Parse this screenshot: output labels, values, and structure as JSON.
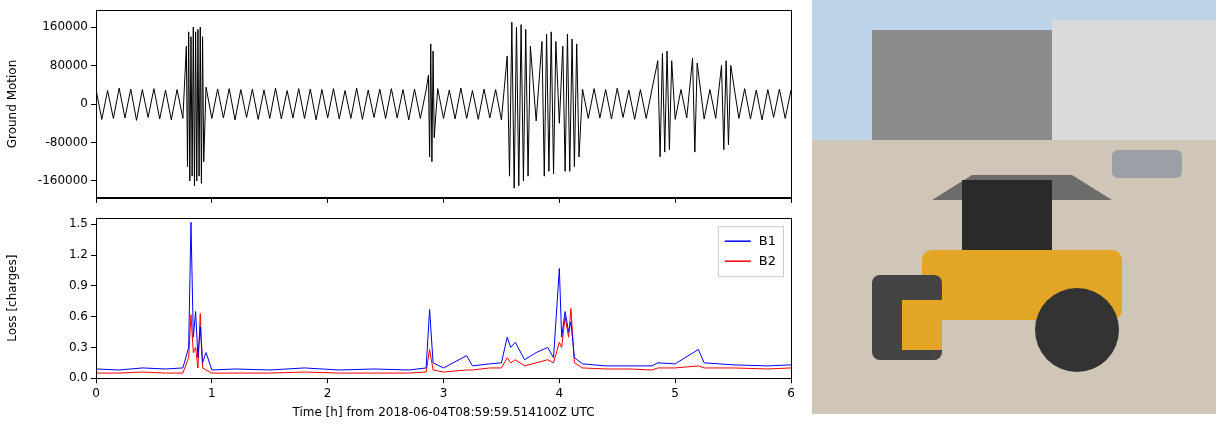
{
  "chart_data": [
    {
      "type": "line",
      "ylabel": "Ground Motion",
      "color": "#000000",
      "xlim": [
        0,
        6
      ],
      "xticks": [
        0,
        1,
        2,
        3,
        4,
        5,
        6
      ],
      "ylim": [
        -195000,
        195000
      ],
      "yticks": [
        -160000,
        -80000,
        0,
        80000,
        160000
      ],
      "grid": false,
      "tick_labels": "y",
      "x": [
        0,
        0.05,
        0.1,
        0.15,
        0.2,
        0.25,
        0.3,
        0.35,
        0.4,
        0.45,
        0.5,
        0.55,
        0.6,
        0.65,
        0.7,
        0.75,
        0.78,
        0.79,
        0.8,
        0.81,
        0.82,
        0.83,
        0.84,
        0.85,
        0.86,
        0.87,
        0.88,
        0.89,
        0.9,
        0.91,
        0.92,
        0.93,
        0.95,
        1.0,
        1.05,
        1.1,
        1.15,
        1.2,
        1.25,
        1.3,
        1.35,
        1.4,
        1.45,
        1.5,
        1.55,
        1.6,
        1.65,
        1.7,
        1.75,
        1.8,
        1.85,
        1.9,
        1.95,
        2.0,
        2.05,
        2.1,
        2.15,
        2.2,
        2.25,
        2.3,
        2.35,
        2.4,
        2.45,
        2.5,
        2.55,
        2.6,
        2.65,
        2.7,
        2.75,
        2.8,
        2.85,
        2.87,
        2.88,
        2.89,
        2.9,
        2.91,
        2.92,
        2.95,
        3.0,
        3.05,
        3.1,
        3.15,
        3.2,
        3.25,
        3.3,
        3.35,
        3.4,
        3.45,
        3.5,
        3.55,
        3.57,
        3.59,
        3.61,
        3.63,
        3.65,
        3.67,
        3.69,
        3.71,
        3.73,
        3.75,
        3.8,
        3.85,
        3.87,
        3.89,
        3.91,
        3.93,
        3.95,
        3.97,
        4.0,
        4.03,
        4.05,
        4.07,
        4.09,
        4.11,
        4.13,
        4.15,
        4.17,
        4.2,
        4.25,
        4.3,
        4.35,
        4.4,
        4.45,
        4.5,
        4.55,
        4.6,
        4.65,
        4.7,
        4.75,
        4.8,
        4.85,
        4.87,
        4.89,
        4.91,
        4.93,
        4.95,
        4.97,
        5.0,
        5.05,
        5.1,
        5.15,
        5.17,
        5.19,
        5.25,
        5.3,
        5.35,
        5.4,
        5.42,
        5.44,
        5.46,
        5.48,
        5.55,
        5.6,
        5.65,
        5.7,
        5.75,
        5.8,
        5.85,
        5.9,
        5.95,
        6.0
      ],
      "series": [
        {
          "color": "#000000",
          "values": [
            30000,
            -32000,
            28000,
            -30000,
            33000,
            -29000,
            31000,
            -34000,
            30000,
            -28000,
            32000,
            -31000,
            29000,
            -33000,
            30000,
            -30000,
            120000,
            -130000,
            150000,
            -160000,
            140000,
            -150000,
            160000,
            -170000,
            150000,
            -160000,
            155000,
            -150000,
            160000,
            -165000,
            140000,
            -120000,
            35000,
            -30000,
            31000,
            -29000,
            32000,
            -33000,
            30000,
            -28000,
            31000,
            -32000,
            29000,
            -30000,
            33000,
            -31000,
            28000,
            -29000,
            32000,
            -30000,
            31000,
            -33000,
            30000,
            -29000,
            32000,
            -31000,
            28000,
            -30000,
            33000,
            -32000,
            29000,
            -28000,
            31000,
            -30000,
            32000,
            -29000,
            30000,
            -33000,
            31000,
            -30000,
            29000,
            60000,
            -110000,
            125000,
            -120000,
            110000,
            -70000,
            32000,
            -30000,
            29000,
            -31000,
            33000,
            -30000,
            28000,
            -32000,
            31000,
            -29000,
            30000,
            -33000,
            100000,
            -150000,
            170000,
            -175000,
            160000,
            -170000,
            165000,
            -160000,
            155000,
            -150000,
            120000,
            -35000,
            130000,
            -150000,
            145000,
            -140000,
            150000,
            -145000,
            130000,
            -40000,
            120000,
            -140000,
            145000,
            -140000,
            135000,
            -130000,
            125000,
            -110000,
            31000,
            -30000,
            32000,
            -29000,
            30000,
            -31000,
            33000,
            -28000,
            29000,
            -32000,
            30000,
            -30000,
            31000,
            90000,
            -110000,
            105000,
            -100000,
            110000,
            -95000,
            90000,
            -32000,
            30000,
            -29000,
            95000,
            -100000,
            85000,
            -31000,
            30000,
            -30000,
            80000,
            -95000,
            90000,
            -85000,
            80000,
            -30000,
            32000,
            -31000,
            29000,
            -33000,
            30000,
            -28000,
            31000,
            -30000,
            29000
          ]
        }
      ]
    },
    {
      "type": "line",
      "xlabel": "Time [h] from 2018-06-04T08:59:59.514100Z UTC",
      "ylabel": "Loss [charges]",
      "xlim": [
        0,
        6
      ],
      "xticks": [
        0,
        1,
        2,
        3,
        4,
        5,
        6
      ],
      "ylim": [
        0,
        1.56
      ],
      "yticks": [
        {
          "value": 0,
          "label": "0.0"
        },
        0.3,
        0.6,
        0.9,
        1.2,
        1.5
      ],
      "grid": false,
      "legend": "upper right",
      "x": [
        0,
        0.2,
        0.4,
        0.6,
        0.75,
        0.8,
        0.82,
        0.84,
        0.86,
        0.88,
        0.9,
        0.92,
        0.95,
        1.0,
        1.2,
        1.5,
        1.8,
        2.1,
        2.4,
        2.7,
        2.85,
        2.88,
        2.91,
        3.0,
        3.2,
        3.25,
        3.4,
        3.5,
        3.55,
        3.58,
        3.62,
        3.7,
        3.8,
        3.9,
        3.95,
        4.0,
        4.02,
        4.05,
        4.08,
        4.1,
        4.13,
        4.2,
        4.4,
        4.6,
        4.8,
        4.85,
        5.0,
        5.2,
        5.25,
        5.5,
        5.8,
        6.0
      ],
      "series": [
        {
          "name": "B1",
          "color": "#0000ff",
          "values": [
            0.09,
            0.08,
            0.1,
            0.09,
            0.1,
            0.3,
            1.52,
            0.4,
            0.65,
            0.2,
            0.5,
            0.15,
            0.25,
            0.08,
            0.09,
            0.08,
            0.1,
            0.08,
            0.09,
            0.08,
            0.1,
            0.67,
            0.15,
            0.1,
            0.22,
            0.12,
            0.14,
            0.15,
            0.4,
            0.3,
            0.35,
            0.18,
            0.25,
            0.3,
            0.2,
            1.07,
            0.4,
            0.65,
            0.45,
            0.55,
            0.2,
            0.14,
            0.12,
            0.12,
            0.12,
            0.15,
            0.14,
            0.28,
            0.15,
            0.13,
            0.12,
            0.13
          ]
        },
        {
          "name": "B2",
          "color": "#ff0000",
          "values": [
            0.05,
            0.05,
            0.06,
            0.05,
            0.05,
            0.2,
            0.62,
            0.25,
            0.3,
            0.1,
            0.63,
            0.1,
            0.08,
            0.05,
            0.05,
            0.05,
            0.06,
            0.05,
            0.05,
            0.05,
            0.06,
            0.28,
            0.08,
            0.06,
            0.08,
            0.08,
            0.1,
            0.1,
            0.2,
            0.15,
            0.18,
            0.12,
            0.15,
            0.18,
            0.15,
            0.35,
            0.3,
            0.6,
            0.4,
            0.68,
            0.15,
            0.1,
            0.09,
            0.09,
            0.08,
            0.1,
            0.1,
            0.12,
            0.1,
            0.1,
            0.09,
            0.1
          ]
        }
      ]
    }
  ]
}
